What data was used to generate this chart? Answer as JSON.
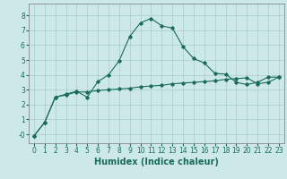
{
  "xlabel": "Humidex (Indice chaleur)",
  "ylabel": "",
  "background_color": "#cce8e8",
  "grid_color": "#aacccc",
  "line_color": "#1a6b5a",
  "x_ticks": [
    0,
    1,
    2,
    3,
    4,
    5,
    6,
    7,
    8,
    9,
    10,
    11,
    12,
    13,
    14,
    15,
    16,
    17,
    18,
    19,
    20,
    21,
    22,
    23
  ],
  "y_ticks": [
    0,
    1,
    2,
    3,
    4,
    5,
    6,
    7,
    8
  ],
  "ylim": [
    -0.6,
    8.8
  ],
  "xlim": [
    -0.5,
    23.5
  ],
  "series1_x": [
    0,
    1,
    2,
    3,
    4,
    5,
    6,
    7,
    8,
    9,
    10,
    11,
    12,
    13,
    14,
    15,
    16,
    17,
    18,
    19,
    20,
    21,
    22,
    23
  ],
  "series1_y": [
    -0.1,
    0.8,
    2.5,
    2.7,
    2.9,
    2.5,
    3.55,
    4.0,
    4.95,
    6.6,
    7.5,
    7.8,
    7.3,
    7.15,
    5.9,
    5.1,
    4.8,
    4.1,
    4.05,
    3.5,
    3.35,
    3.5,
    3.85,
    3.85
  ],
  "series2_x": [
    0,
    1,
    2,
    3,
    4,
    5,
    6,
    7,
    8,
    9,
    10,
    11,
    12,
    13,
    14,
    15,
    16,
    17,
    18,
    19,
    20,
    21,
    22,
    23
  ],
  "series2_y": [
    -0.1,
    0.8,
    2.5,
    2.65,
    2.85,
    2.85,
    2.95,
    3.0,
    3.05,
    3.1,
    3.2,
    3.25,
    3.3,
    3.4,
    3.45,
    3.5,
    3.55,
    3.6,
    3.7,
    3.75,
    3.8,
    3.4,
    3.5,
    3.85
  ],
  "marker": "D",
  "markersize": 1.8,
  "linewidth": 0.8,
  "fontsize_label": 6.5,
  "fontsize_tick": 5.5,
  "fontsize_xlabel": 7.0
}
